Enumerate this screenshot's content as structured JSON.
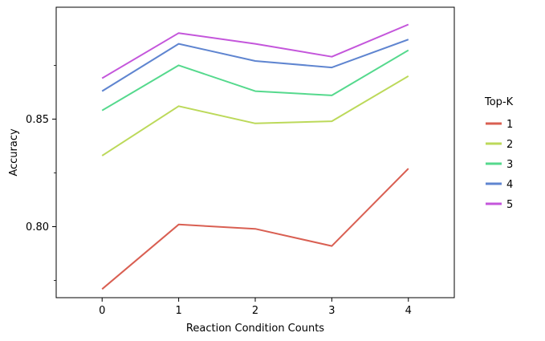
{
  "chart_data": {
    "type": "line",
    "title": "",
    "xlabel": "Reaction Condition Counts",
    "ylabel": "Accuracy",
    "x": [
      0,
      1,
      2,
      3,
      4
    ],
    "x_ticks": [
      "0",
      "1",
      "2",
      "3",
      "4"
    ],
    "xlim": [
      -0.6,
      4.6
    ],
    "ylim": [
      0.767,
      0.902
    ],
    "y_ticks_major": [
      0.8,
      0.85
    ],
    "y_tick_labels": [
      "0.80",
      "0.85"
    ],
    "y_ticks_minor": [
      0.775,
      0.825,
      0.875
    ],
    "grid": false,
    "legend_title": "Top-K",
    "legend_position": "right",
    "series": [
      {
        "name": "1",
        "color": "#d95f52",
        "values": [
          0.771,
          0.801,
          0.799,
          0.791,
          0.827
        ]
      },
      {
        "name": "2",
        "color": "#bcd95a",
        "values": [
          0.833,
          0.856,
          0.848,
          0.849,
          0.87
        ]
      },
      {
        "name": "3",
        "color": "#55d98d",
        "values": [
          0.854,
          0.875,
          0.863,
          0.861,
          0.882
        ]
      },
      {
        "name": "4",
        "color": "#5f85d0",
        "values": [
          0.863,
          0.885,
          0.877,
          0.874,
          0.887
        ]
      },
      {
        "name": "5",
        "color": "#c456db",
        "values": [
          0.869,
          0.89,
          0.885,
          0.879,
          0.894
        ]
      }
    ]
  }
}
